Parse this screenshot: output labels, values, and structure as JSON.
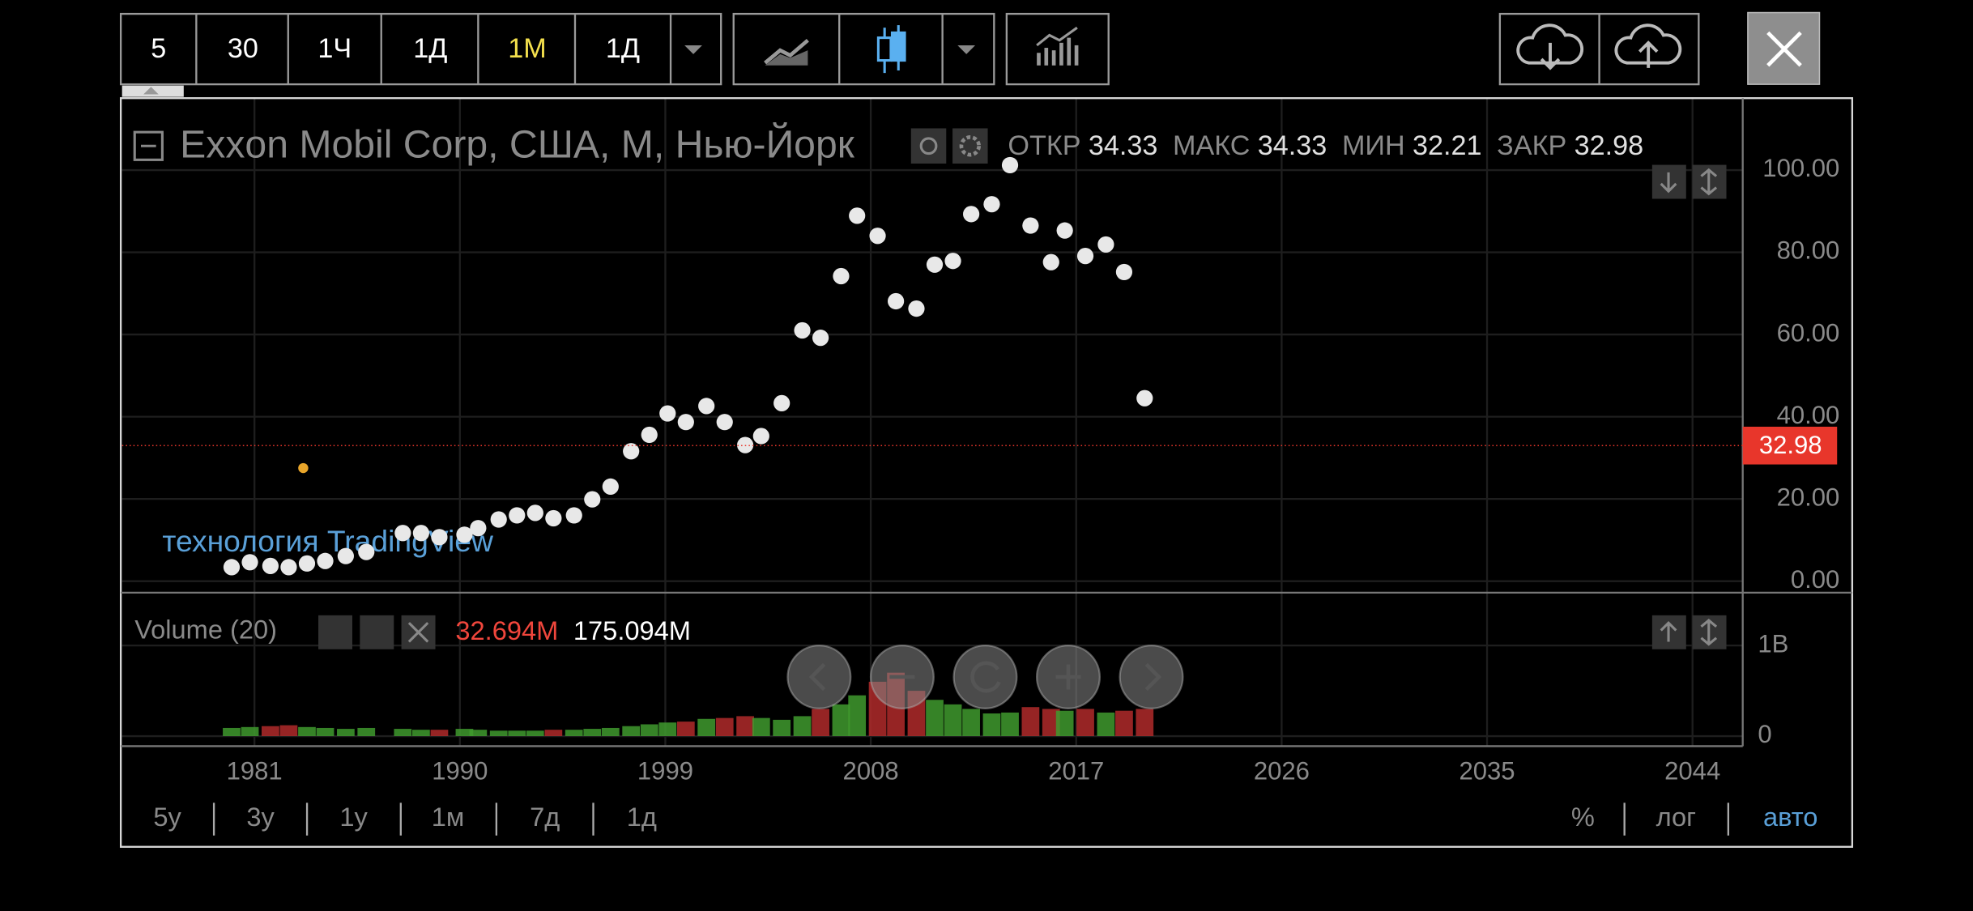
{
  "toolbar": {
    "intervals": [
      "5",
      "30",
      "1Ч",
      "1Д",
      "1М",
      "1Д"
    ]
  },
  "legend": {
    "title": "Exxon Mobil Corp, США, М, Нью-Йорк",
    "ohlc": [
      {
        "label": "ОТКР",
        "value": 34.33
      },
      {
        "label": "МАКС",
        "value": 34.33
      },
      {
        "label": "МИН",
        "value": 32.21
      },
      {
        "label": "ЗАКР",
        "value": 32.98
      }
    ]
  },
  "watermark": "технология TradingView",
  "volume_legend": {
    "title": "Volume (20)",
    "values": [
      {
        "value": 32694000,
        "label": "32.694M",
        "color": "#f0463c"
      },
      {
        "value": 175094000,
        "label": "175.094M",
        "color": "#ffffff"
      }
    ]
  },
  "bottom_bar": {
    "ranges": [
      "5у",
      "3у",
      "1у",
      "1м",
      "7д",
      "1д"
    ],
    "scale_modes": [
      "%",
      "лог",
      "авто"
    ]
  },
  "chart_data": [
    {
      "type": "scatter",
      "color": "#e8e8e8",
      "x": [
        1980.0,
        1980.8,
        1981.7,
        1982.5,
        1983.3,
        1984.1,
        1985.0,
        1985.9,
        1987.5,
        1988.3,
        1989.1,
        1990.2,
        1990.8,
        1991.7,
        1992.5,
        1993.3,
        1994.1,
        1995.0,
        1995.8,
        1996.6,
        1997.5,
        1998.3,
        1999.1,
        1999.9,
        2000.8,
        2001.6,
        2002.5,
        2003.2,
        2004.1,
        2005.0,
        2005.8,
        2006.7,
        2007.4,
        2008.3,
        2009.1,
        2010.0,
        2010.8,
        2011.6,
        2012.4,
        2013.3,
        2014.1,
        2015.0,
        2015.9,
        2016.5,
        2017.4,
        2018.3,
        2019.1,
        2020.0
      ],
      "values": [
        3.4,
        4.6,
        3.7,
        3.4,
        4.3,
        4.9,
        6.1,
        7.1,
        11.7,
        11.7,
        10.7,
        11.3,
        12.9,
        15.0,
        16.0,
        16.6,
        15.3,
        16.0,
        19.9,
        23.0,
        31.6,
        35.6,
        40.8,
        38.7,
        42.6,
        38.7,
        33.1,
        35.3,
        43.3,
        61.0,
        59.2,
        74.2,
        88.9,
        84.0,
        68.1,
        66.3,
        77.0,
        77.9,
        89.3,
        91.7,
        101.2,
        86.5,
        77.6,
        85.3,
        79.1,
        81.9,
        75.2,
        44.5
      ],
      "xlim": [
        1975.2,
        2046.2
      ],
      "xticks": [
        1981,
        1990,
        1999,
        2008,
        2017,
        2026,
        2035,
        2044
      ],
      "ylim": [
        -2.8,
        117.5
      ],
      "yticks": [
        {
          "value": 0,
          "label": "0.00"
        },
        {
          "value": 20,
          "label": "20.00"
        },
        {
          "value": 40,
          "label": "40.00"
        },
        {
          "value": 60,
          "label": "60.00"
        },
        {
          "value": 80,
          "label": "80.00"
        },
        {
          "value": 100,
          "label": "100.00"
        }
      ],
      "grid": true,
      "last_price_color": "#e8362b"
    },
    {
      "type": "bar",
      "up_color": "#3f9a2e",
      "down_color": "#b02a2a",
      "values": [
        90000000,
        100000000,
        110000000,
        120000000,
        100000000,
        90000000,
        80000000,
        90000000,
        80000000,
        70000000,
        70000000,
        80000000,
        70000000,
        60000000,
        60000000,
        60000000,
        70000000,
        70000000,
        80000000,
        90000000,
        110000000,
        130000000,
        150000000,
        160000000,
        190000000,
        200000000,
        220000000,
        200000000,
        180000000,
        220000000,
        300000000,
        350000000,
        450000000,
        600000000,
        700000000,
        500000000,
        400000000,
        350000000,
        300000000,
        250000000,
        260000000,
        320000000,
        300000000,
        280000000,
        300000000,
        260000000,
        280000000,
        300000000
      ],
      "ylim": [
        -111000000,
        1486000000
      ],
      "yticks": [
        0,
        {
          "value": 1000000000,
          "label": "1B"
        }
      ],
      "grid": true
    }
  ]
}
